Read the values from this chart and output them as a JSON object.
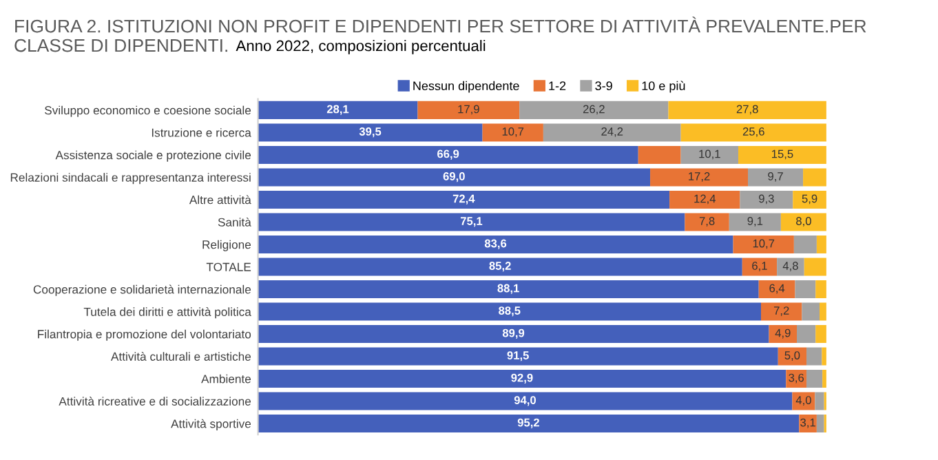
{
  "chart_data": {
    "type": "bar",
    "orientation": "horizontal",
    "stacked": true,
    "title": "FIGURA 2. ISTITUZIONI NON PROFIT E DIPENDENTI PER SETTORE DI ATTIVITÀ PREVALENTE.PER CLASSE DI DIPENDENTI.",
    "subtitle": "Anno 2022, composizioni percentuali",
    "categories": [
      "Sviluppo economico e coesione sociale",
      "Istruzione e ricerca",
      "Assistenza sociale e protezione civile",
      "Relazioni sindacali e rappresentanza interessi",
      "Altre attività",
      "Sanità",
      "Religione",
      "TOTALE",
      "Cooperazione e solidarietà internazionale",
      "Tutela dei diritti e attività politica",
      "Filantropia e promozione del volontariato",
      "Attività culturali e artistiche",
      "Ambiente",
      "Attività ricreative e di socializzazione",
      "Attività sportive"
    ],
    "series": [
      {
        "name": "Nessun dipendente",
        "color": "#4460bb",
        "values": [
          28.1,
          39.5,
          66.9,
          69.0,
          72.4,
          75.1,
          83.6,
          85.2,
          88.1,
          88.5,
          89.9,
          91.5,
          92.9,
          94.0,
          95.2
        ],
        "value_labels": [
          "28,1",
          "39,5",
          "66,9",
          "69,0",
          "72,4",
          "75,1",
          "83,6",
          "85,2",
          "88,1",
          "88,5",
          "89,9",
          "91,5",
          "92,9",
          "94,0",
          "95,2"
        ]
      },
      {
        "name": "1-2",
        "color": "#e87435",
        "values": [
          17.9,
          10.7,
          7.5,
          17.2,
          12.4,
          7.8,
          10.7,
          6.1,
          6.4,
          7.2,
          4.9,
          5.0,
          3.6,
          4.0,
          3.1
        ],
        "value_labels": [
          "17,9",
          "10,7",
          null,
          "17,2",
          "12,4",
          "7,8",
          "10,7",
          "6,1",
          "6,4",
          "7,2",
          "4,9",
          "5,0",
          "3,6",
          "4,0",
          "3,1"
        ]
      },
      {
        "name": "3-9",
        "color": "#a3a3a3",
        "values": [
          26.2,
          24.2,
          10.1,
          9.7,
          9.3,
          9.1,
          4.0,
          4.8,
          3.6,
          3.1,
          3.3,
          2.7,
          2.8,
          1.6,
          1.3
        ],
        "value_labels": [
          "26,2",
          "24,2",
          "10,1",
          "9,7",
          "9,3",
          "9,1",
          null,
          "4,8",
          null,
          null,
          null,
          null,
          null,
          null,
          null
        ]
      },
      {
        "name": "10 e più",
        "color": "#fbbd25",
        "values": [
          27.8,
          25.6,
          15.5,
          4.1,
          5.9,
          8.0,
          1.7,
          3.9,
          1.9,
          1.2,
          1.9,
          0.8,
          0.7,
          0.4,
          0.4
        ],
        "value_labels": [
          "27,8",
          "25,6",
          "15,5",
          null,
          "5,9",
          "8,0",
          null,
          null,
          null,
          null,
          null,
          null,
          null,
          null,
          null
        ]
      }
    ],
    "xlim": [
      0,
      100
    ],
    "tick_labels": "y",
    "legend": "top",
    "grid": false
  }
}
